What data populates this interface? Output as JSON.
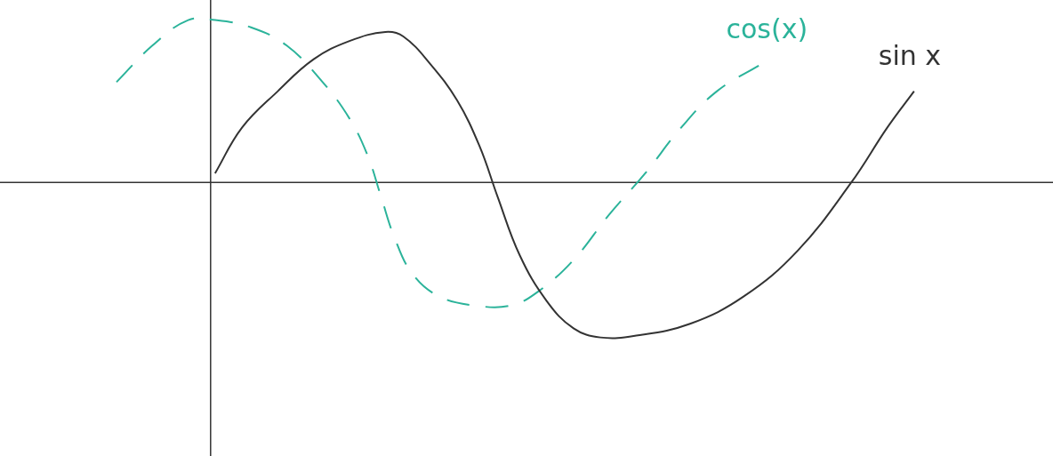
{
  "chart_data": {
    "type": "line",
    "xlim": [
      -2.35,
      9.4
    ],
    "ylim": [
      -3,
      2
    ],
    "grid": false,
    "tick_labels": false,
    "series": [
      {
        "name": "sin x",
        "color": "#333333",
        "line_style": "solid",
        "marker": "none",
        "x": [
          0.05,
          0.35,
          0.75,
          1.15,
          1.55,
          1.95,
          2.15,
          2.45,
          2.75,
          3.0,
          3.2,
          3.45,
          3.75,
          4.05,
          4.35,
          4.75,
          5.35,
          5.95,
          6.55,
          7.15,
          7.55,
          7.85
        ],
        "values": [
          0.1,
          0.6,
          1.0,
          1.35,
          1.55,
          1.65,
          1.6,
          1.3,
          0.9,
          0.4,
          -0.15,
          -0.8,
          -1.3,
          -1.6,
          -1.7,
          -1.68,
          -1.55,
          -1.25,
          -0.75,
          0.0,
          0.6,
          1.0
        ]
      },
      {
        "name": "cos(x)",
        "color": "#2bb39a",
        "line_style": "dashed",
        "marker": "none",
        "x": [
          -1.05,
          -0.65,
          -0.25,
          0.05,
          0.45,
          0.85,
          1.25,
          1.55,
          1.75,
          1.9,
          2.05,
          2.25,
          2.55,
          2.95,
          3.35,
          3.65,
          4.05,
          4.45,
          4.85,
          5.25,
          5.65,
          6.15
        ],
        "values": [
          1.1,
          1.5,
          1.78,
          1.78,
          1.7,
          1.5,
          1.1,
          0.7,
          0.3,
          -0.15,
          -0.6,
          -1.0,
          -1.25,
          -1.35,
          -1.35,
          -1.2,
          -0.85,
          -0.35,
          0.1,
          0.6,
          1.0,
          1.3
        ]
      }
    ]
  }
}
